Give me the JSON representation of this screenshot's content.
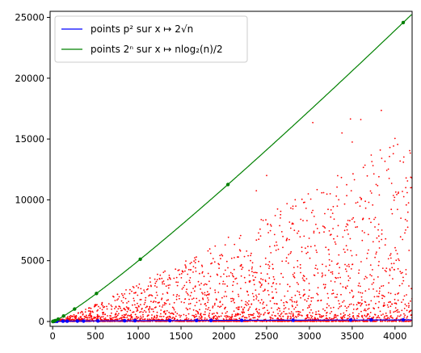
{
  "chart_data": {
    "type": "scatter",
    "title": "",
    "xlabel": "",
    "ylabel": "",
    "xlim": [
      -30,
      4200
    ],
    "ylim": [
      -400,
      25500
    ],
    "x_ticks": [
      0,
      500,
      1000,
      1500,
      2000,
      2500,
      3000,
      3500,
      4000
    ],
    "y_ticks": [
      0,
      5000,
      10000,
      15000,
      20000,
      25000
    ],
    "x_tick_labels": [
      "0",
      "500",
      "1000",
      "1500",
      "2000",
      "2500",
      "3000",
      "3500",
      "4000"
    ],
    "y_tick_labels": [
      "0",
      "5000",
      "10000",
      "15000",
      "20000",
      "25000"
    ],
    "grid": false,
    "legend": {
      "placement": "upper-left",
      "entries": [
        {
          "label": "points p² sur x ↦ 2√n",
          "color": "#0000ff",
          "series_index": 0
        },
        {
          "label": "points 2ⁿ sur x ↦ nlog₂(n)/2",
          "color": "#008000",
          "series_index": 1
        }
      ]
    },
    "series": [
      {
        "kind": "points",
        "color": "#0000ff",
        "values_x": [
          4,
          9,
          25,
          49,
          121,
          169,
          289,
          361,
          529,
          841,
          961,
          1369,
          1681,
          1849,
          2209,
          2809,
          3481,
          3721,
          4096
        ],
        "values_y": [
          4,
          6,
          10,
          14,
          22,
          26,
          34,
          38,
          46,
          58,
          62,
          74,
          82,
          86,
          94,
          106,
          118,
          122,
          128
        ]
      },
      {
        "kind": "points",
        "color": "#008000",
        "values_x": [
          2,
          4,
          8,
          16,
          32,
          64,
          128,
          256,
          512,
          1024,
          2048,
          4096
        ],
        "values_y": [
          1,
          4,
          12,
          32,
          80,
          192,
          448,
          1024,
          2304,
          5120,
          11264,
          24576
        ]
      },
      {
        "kind": "curve",
        "formula": "2*sqrt(n)",
        "color": "#0000ff"
      },
      {
        "kind": "curve",
        "formula": "n*log2(n)/2",
        "color": "#008000"
      },
      {
        "kind": "scatter-cloud",
        "color": "#ff0000",
        "n_range": [
          2,
          4200
        ],
        "y_envelope": "n*log2(n)/2",
        "sample_upper_points": [
          {
            "x": 3840,
            "y": 17350
          },
          {
            "x": 3480,
            "y": 16650
          },
          {
            "x": 3600,
            "y": 16600
          },
          {
            "x": 3040,
            "y": 16350
          },
          {
            "x": 3380,
            "y": 15500
          },
          {
            "x": 4000,
            "y": 15050
          },
          {
            "x": 3940,
            "y": 14300
          },
          {
            "x": 3500,
            "y": 14750
          },
          {
            "x": 3730,
            "y": 13150
          },
          {
            "x": 3650,
            "y": 12850
          },
          {
            "x": 2500,
            "y": 12000
          },
          {
            "x": 2380,
            "y": 10750
          }
        ]
      }
    ]
  }
}
